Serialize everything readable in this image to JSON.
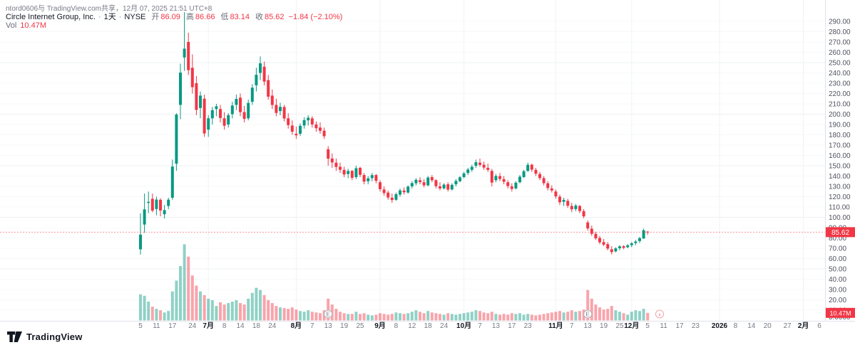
{
  "page": {
    "share_note": "ntord0606与 TradingView.com共享，12月 07, 2025 21:51 UTC+8"
  },
  "legend": {
    "symbol": "Circle Internet Group, Inc.",
    "separator": "·",
    "interval": "1天",
    "exchange": "NYSE",
    "open_label": "开",
    "open": "86.09",
    "high_label": "高",
    "high": "86.66",
    "low_label": "低",
    "low": "83.14",
    "close_label": "收",
    "close": "85.62",
    "change": "−1.84 (−2.10%)",
    "vol_label": "Vol",
    "vol_value": "10.47M"
  },
  "footer": {
    "brand": "TradingView"
  },
  "colors": {
    "up": "#089981",
    "down": "#F23645",
    "volume_up": "rgba(8,153,129,0.45)",
    "volume_down": "rgba(242,54,69,0.45)",
    "axis_text": "#50535e",
    "muted_text": "#787b86",
    "dark_text": "#131722",
    "badge_bg": "#F23645",
    "grid": "#f0f2f5",
    "border": "#e0e3eb"
  },
  "price_badge": "85.62",
  "volume_badge": "10.47M",
  "markers": [
    {
      "type": "earnings",
      "slot": 47,
      "label": "E"
    },
    {
      "type": "earnings",
      "slot": 112,
      "label": "E"
    },
    {
      "type": "latest",
      "slot": 130,
      "label": "›"
    }
  ],
  "chart_data": {
    "type": "candlestick",
    "title": "Circle Internet Group, Inc. · 1天 · NYSE",
    "interval": "1天",
    "exchange": "NYSE",
    "price_axis_range": [
      0,
      290
    ],
    "last_price": 85.62,
    "last_change": "−1.84 (−2.10%)",
    "last_volume_m": 10.47,
    "volume_unit": "millions of shares (estimated from bars)",
    "legend_position": "top-left",
    "grid": "faint",
    "price_axis_labels": [
      "290.00",
      "280.00",
      "270.00",
      "260.00",
      "250.00",
      "240.00",
      "230.00",
      "220.00",
      "210.00",
      "200.00",
      "190.00",
      "180.00",
      "170.00",
      "160.00",
      "150.00",
      "140.00",
      "130.00",
      "120.00",
      "110.00",
      "100.00",
      "90.00",
      "80.00",
      "70.00",
      "60.00",
      "50.00",
      "40.00",
      "30.00",
      "20.00",
      "10.00",
      "0.0000"
    ],
    "time_axis_labels": [
      {
        "label": "5",
        "slot": 0,
        "major": false
      },
      {
        "label": "11",
        "slot": 4,
        "major": false
      },
      {
        "label": "17",
        "slot": 8,
        "major": false
      },
      {
        "label": "24",
        "slot": 13,
        "major": false
      },
      {
        "label": "7月",
        "slot": 17,
        "major": true
      },
      {
        "label": "8",
        "slot": 21,
        "major": false
      },
      {
        "label": "14",
        "slot": 25,
        "major": false
      },
      {
        "label": "18",
        "slot": 29,
        "major": false
      },
      {
        "label": "24",
        "slot": 33,
        "major": false
      },
      {
        "label": "8月",
        "slot": 39,
        "major": true
      },
      {
        "label": "7",
        "slot": 43,
        "major": false
      },
      {
        "label": "13",
        "slot": 47,
        "major": false
      },
      {
        "label": "19",
        "slot": 51,
        "major": false
      },
      {
        "label": "25",
        "slot": 55,
        "major": false
      },
      {
        "label": "9月",
        "slot": 60,
        "major": true
      },
      {
        "label": "8",
        "slot": 64,
        "major": false
      },
      {
        "label": "12",
        "slot": 68,
        "major": false
      },
      {
        "label": "18",
        "slot": 72,
        "major": false
      },
      {
        "label": "24",
        "slot": 76,
        "major": false
      },
      {
        "label": "10月",
        "slot": 81,
        "major": true
      },
      {
        "label": "7",
        "slot": 85,
        "major": false
      },
      {
        "label": "13",
        "slot": 89,
        "major": false
      },
      {
        "label": "17",
        "slot": 93,
        "major": false
      },
      {
        "label": "23",
        "slot": 97,
        "major": false
      },
      {
        "label": "11月",
        "slot": 104,
        "major": true
      },
      {
        "label": "7",
        "slot": 108,
        "major": false
      },
      {
        "label": "13",
        "slot": 112,
        "major": false
      },
      {
        "label": "19",
        "slot": 116,
        "major": false
      },
      {
        "label": "25",
        "slot": 120,
        "major": false
      },
      {
        "label": "12月",
        "slot": 123,
        "major": true
      },
      {
        "label": "5",
        "slot": 127,
        "major": false
      },
      {
        "label": "11",
        "slot": 131,
        "major": false
      },
      {
        "label": "17",
        "slot": 135,
        "major": false
      },
      {
        "label": "23",
        "slot": 139,
        "major": false
      },
      {
        "label": "2026",
        "slot": 145,
        "major": true
      },
      {
        "label": "8",
        "slot": 149,
        "major": false
      },
      {
        "label": "14",
        "slot": 153,
        "major": false
      },
      {
        "label": "20",
        "slot": 157,
        "major": false
      },
      {
        "label": "27",
        "slot": 162,
        "major": false
      },
      {
        "label": "2月",
        "slot": 166,
        "major": true
      },
      {
        "label": "6",
        "slot": 170,
        "major": false
      }
    ],
    "columns": [
      "date",
      "open",
      "high",
      "low",
      "close",
      "volume_m"
    ],
    "rows": [
      [
        "2025-06-05",
        69,
        104,
        64,
        83.2,
        36
      ],
      [
        "2025-06-06",
        93,
        123,
        85,
        107.7,
        34
      ],
      [
        "2025-06-09",
        114,
        125,
        104,
        115.0,
        26
      ],
      [
        "2025-06-10",
        118,
        123,
        105,
        106.5,
        19
      ],
      [
        "2025-06-11",
        108,
        120,
        102,
        117.2,
        16
      ],
      [
        "2025-06-12",
        117,
        118.5,
        101,
        106.6,
        14
      ],
      [
        "2025-06-13",
        103,
        112,
        99,
        107.0,
        11
      ],
      [
        "2025-06-16",
        111,
        119,
        108,
        117.1,
        13
      ],
      [
        "2025-06-17",
        119,
        156,
        117,
        149.2,
        40
      ],
      [
        "2025-06-18",
        152,
        201,
        145,
        199.6,
        55
      ],
      [
        "2025-06-20",
        209,
        249,
        195,
        240.3,
        75
      ],
      [
        "2025-06-23",
        255,
        299,
        242,
        263.5,
        105
      ],
      [
        "2025-06-24",
        270,
        279,
        238,
        242.7,
        88
      ],
      [
        "2025-06-25",
        245,
        258,
        220,
        226.2,
        62
      ],
      [
        "2025-06-26",
        230,
        237,
        199,
        204.1,
        48
      ],
      [
        "2025-06-27",
        206,
        222,
        196,
        218.0,
        40
      ],
      [
        "2025-06-30",
        215,
        219,
        178,
        181.3,
        35
      ],
      [
        "2025-07-01",
        185,
        199,
        178,
        196.0,
        30
      ],
      [
        "2025-07-02",
        196,
        207,
        190,
        203.9,
        28
      ],
      [
        "2025-07-03",
        205,
        210,
        198,
        207.6,
        20
      ],
      [
        "2025-07-07",
        205,
        209,
        192,
        196.3,
        25
      ],
      [
        "2025-07-08",
        196,
        202,
        185,
        188.8,
        22
      ],
      [
        "2025-07-09",
        190,
        201,
        187,
        199.1,
        24
      ],
      [
        "2025-07-10",
        200,
        212,
        196,
        208.4,
        26
      ],
      [
        "2025-07-11",
        209,
        219,
        204,
        214.8,
        28
      ],
      [
        "2025-07-14",
        216,
        220,
        198,
        202.0,
        24
      ],
      [
        "2025-07-15",
        202,
        208,
        192,
        195.4,
        22
      ],
      [
        "2025-07-16",
        196,
        214,
        194,
        210.9,
        30
      ],
      [
        "2025-07-17",
        212,
        229,
        209,
        225.7,
        38
      ],
      [
        "2025-07-18",
        228,
        245,
        222,
        238.2,
        45
      ],
      [
        "2025-07-21",
        240,
        256,
        233,
        249.3,
        42
      ],
      [
        "2025-07-22",
        246,
        251,
        228,
        231.6,
        35
      ],
      [
        "2025-07-23",
        233,
        238,
        214,
        217.0,
        28
      ],
      [
        "2025-07-24",
        218,
        224,
        205,
        208.9,
        24
      ],
      [
        "2025-07-25",
        209,
        215,
        198,
        201.2,
        20
      ],
      [
        "2025-07-28",
        203,
        211,
        199,
        207.1,
        18
      ],
      [
        "2025-07-29",
        207,
        209,
        193,
        195.8,
        17
      ],
      [
        "2025-07-30",
        196,
        201,
        186,
        189.4,
        16
      ],
      [
        "2025-07-31",
        189,
        194,
        180,
        183.0,
        18
      ],
      [
        "2025-08-01",
        181,
        188,
        176,
        179.5,
        15
      ],
      [
        "2025-08-04",
        181,
        191,
        179,
        188.7,
        13
      ],
      [
        "2025-08-05",
        189,
        197,
        186,
        194.2,
        12
      ],
      [
        "2025-08-06",
        194,
        199,
        189,
        196.6,
        14
      ],
      [
        "2025-08-07",
        196,
        198,
        187,
        190.1,
        12
      ],
      [
        "2025-08-08",
        190,
        193,
        183,
        186.4,
        11
      ],
      [
        "2025-08-11",
        187,
        192,
        181,
        183.9,
        10
      ],
      [
        "2025-08-12",
        184,
        187,
        176,
        178.6,
        14
      ],
      [
        "2025-08-13",
        166,
        169,
        150,
        156.9,
        30
      ],
      [
        "2025-08-14",
        157,
        162,
        148,
        153.2,
        22
      ],
      [
        "2025-08-15",
        153,
        157,
        145,
        148.8,
        16
      ],
      [
        "2025-08-18",
        149,
        153,
        143,
        146.1,
        12
      ],
      [
        "2025-08-19",
        146,
        149,
        139,
        141.5,
        10
      ],
      [
        "2025-08-20",
        142,
        147,
        138,
        144.9,
        9
      ],
      [
        "2025-08-21",
        145,
        146,
        136,
        138.3,
        9
      ],
      [
        "2025-08-22",
        139,
        150,
        137,
        147.6,
        12
      ],
      [
        "2025-08-25",
        148,
        149,
        139,
        141.2,
        9
      ],
      [
        "2025-08-26",
        141,
        143,
        132,
        134.6,
        10
      ],
      [
        "2025-08-27",
        135,
        140,
        132,
        137.8,
        8
      ],
      [
        "2025-08-28",
        138,
        143,
        135,
        140.9,
        7
      ],
      [
        "2025-08-29",
        141,
        142,
        133,
        135.4,
        8
      ],
      [
        "2025-09-02",
        134,
        136,
        125,
        127.3,
        10
      ],
      [
        "2025-09-03",
        127,
        130,
        121,
        123.5,
        9
      ],
      [
        "2025-09-04",
        124,
        126,
        117,
        119.2,
        8
      ],
      [
        "2025-09-05",
        119,
        123,
        114,
        116.8,
        9
      ],
      [
        "2025-09-08",
        117,
        124,
        116,
        122.4,
        11
      ],
      [
        "2025-09-09",
        122,
        128,
        120,
        126.1,
        10
      ],
      [
        "2025-09-10",
        126,
        129,
        122,
        124.3,
        9
      ],
      [
        "2025-09-11",
        124,
        131,
        123,
        129.8,
        10
      ],
      [
        "2025-09-12",
        130,
        135,
        128,
        133.2,
        12
      ],
      [
        "2025-09-15",
        133,
        138,
        131,
        136.4,
        14
      ],
      [
        "2025-09-16",
        136,
        139,
        132,
        134.1,
        12
      ],
      [
        "2025-09-17",
        134,
        137,
        129,
        131.0,
        10
      ],
      [
        "2025-09-18",
        131,
        140,
        130,
        138.6,
        13
      ],
      [
        "2025-09-19",
        139,
        141,
        134,
        135.9,
        11
      ],
      [
        "2025-09-22",
        136,
        137,
        128,
        130.2,
        10
      ],
      [
        "2025-09-23",
        130,
        134,
        126,
        128.0,
        9
      ],
      [
        "2025-09-24",
        128,
        133,
        127,
        131.7,
        8
      ],
      [
        "2025-09-25",
        132,
        134,
        125,
        126.9,
        10
      ],
      [
        "2025-09-26",
        127,
        133,
        126,
        131.5,
        9
      ],
      [
        "2025-09-29",
        132,
        137,
        130,
        135.3,
        8
      ],
      [
        "2025-09-30",
        135,
        140,
        134,
        138.8,
        9
      ],
      [
        "2025-10-01",
        139,
        144,
        138,
        142.6,
        10
      ],
      [
        "2025-10-02",
        143,
        148,
        141,
        146.3,
        11
      ],
      [
        "2025-10-03",
        146,
        151,
        144,
        149.0,
        12
      ],
      [
        "2025-10-06",
        150,
        156,
        148,
        153.4,
        14
      ],
      [
        "2025-10-07",
        153,
        157,
        149,
        150.8,
        13
      ],
      [
        "2025-10-08",
        151,
        154,
        146,
        148.2,
        11
      ],
      [
        "2025-10-09",
        148,
        152,
        144,
        146.0,
        10
      ],
      [
        "2025-10-10",
        145,
        147,
        130,
        133.7,
        12
      ],
      [
        "2025-10-13",
        136,
        142,
        134,
        140.1,
        9
      ],
      [
        "2025-10-14",
        140,
        143,
        135,
        137.2,
        8
      ],
      [
        "2025-10-15",
        137,
        140,
        132,
        134.5,
        9
      ],
      [
        "2025-10-16",
        134,
        136,
        128,
        130.3,
        8
      ],
      [
        "2025-10-17",
        130,
        133,
        125,
        127.5,
        10
      ],
      [
        "2025-10-20",
        128,
        135,
        127,
        133.6,
        9
      ],
      [
        "2025-10-21",
        134,
        141,
        133,
        139.4,
        10
      ],
      [
        "2025-10-22",
        139,
        146,
        138,
        144.7,
        8
      ],
      [
        "2025-10-23",
        145,
        153,
        144,
        150.9,
        9
      ],
      [
        "2025-10-24",
        151,
        152,
        144,
        146.2,
        8
      ],
      [
        "2025-10-27",
        146,
        148,
        140,
        142.3,
        7
      ],
      [
        "2025-10-28",
        142,
        144,
        136,
        138.0,
        8
      ],
      [
        "2025-10-29",
        138,
        140,
        131,
        133.1,
        9
      ],
      [
        "2025-10-30",
        133,
        135,
        126,
        128.4,
        10
      ],
      [
        "2025-10-31",
        128,
        131,
        124,
        126.0,
        11
      ],
      [
        "2025-11-03",
        125,
        127,
        118,
        120.3,
        12
      ],
      [
        "2025-11-04",
        120,
        122,
        112,
        114.6,
        13
      ],
      [
        "2025-11-05",
        115,
        119,
        111,
        116.9,
        11
      ],
      [
        "2025-11-06",
        116,
        118,
        109,
        111.2,
        12
      ],
      [
        "2025-11-07",
        111,
        114,
        105,
        107.8,
        14
      ],
      [
        "2025-11-10",
        108,
        113,
        106,
        111.4,
        12
      ],
      [
        "2025-11-11",
        111,
        112,
        104,
        106.1,
        13
      ],
      [
        "2025-11-12",
        106,
        108,
        99,
        100.9,
        15
      ],
      [
        "2025-11-13",
        95,
        97,
        87,
        89.2,
        42
      ],
      [
        "2025-11-14",
        89,
        92,
        82,
        84.0,
        30
      ],
      [
        "2025-11-17",
        84,
        86,
        78,
        79.6,
        22
      ],
      [
        "2025-11-18",
        80,
        82,
        74,
        75.8,
        18
      ],
      [
        "2025-11-19",
        76,
        79,
        72,
        73.5,
        15
      ],
      [
        "2025-11-20",
        74,
        76,
        68,
        69.7,
        16
      ],
      [
        "2025-11-21",
        69,
        72,
        64,
        66.3,
        20
      ],
      [
        "2025-11-24",
        67,
        71,
        66,
        69.9,
        14
      ],
      [
        "2025-11-25",
        70,
        73,
        68,
        71.8,
        12
      ],
      [
        "2025-11-26",
        72,
        73,
        69,
        70.4,
        10
      ],
      [
        "2025-11-28",
        71,
        74,
        70,
        72.9,
        8
      ],
      [
        "2025-12-01",
        73,
        76,
        71,
        74.8,
        12
      ],
      [
        "2025-12-02",
        75,
        78,
        73,
        76.5,
        14
      ],
      [
        "2025-12-03",
        77,
        81,
        75,
        79.8,
        13
      ],
      [
        "2025-12-04",
        79.5,
        89,
        79,
        87.46,
        16
      ],
      [
        "2025-12-05",
        86.09,
        86.66,
        83.14,
        85.62,
        10.47
      ]
    ]
  }
}
